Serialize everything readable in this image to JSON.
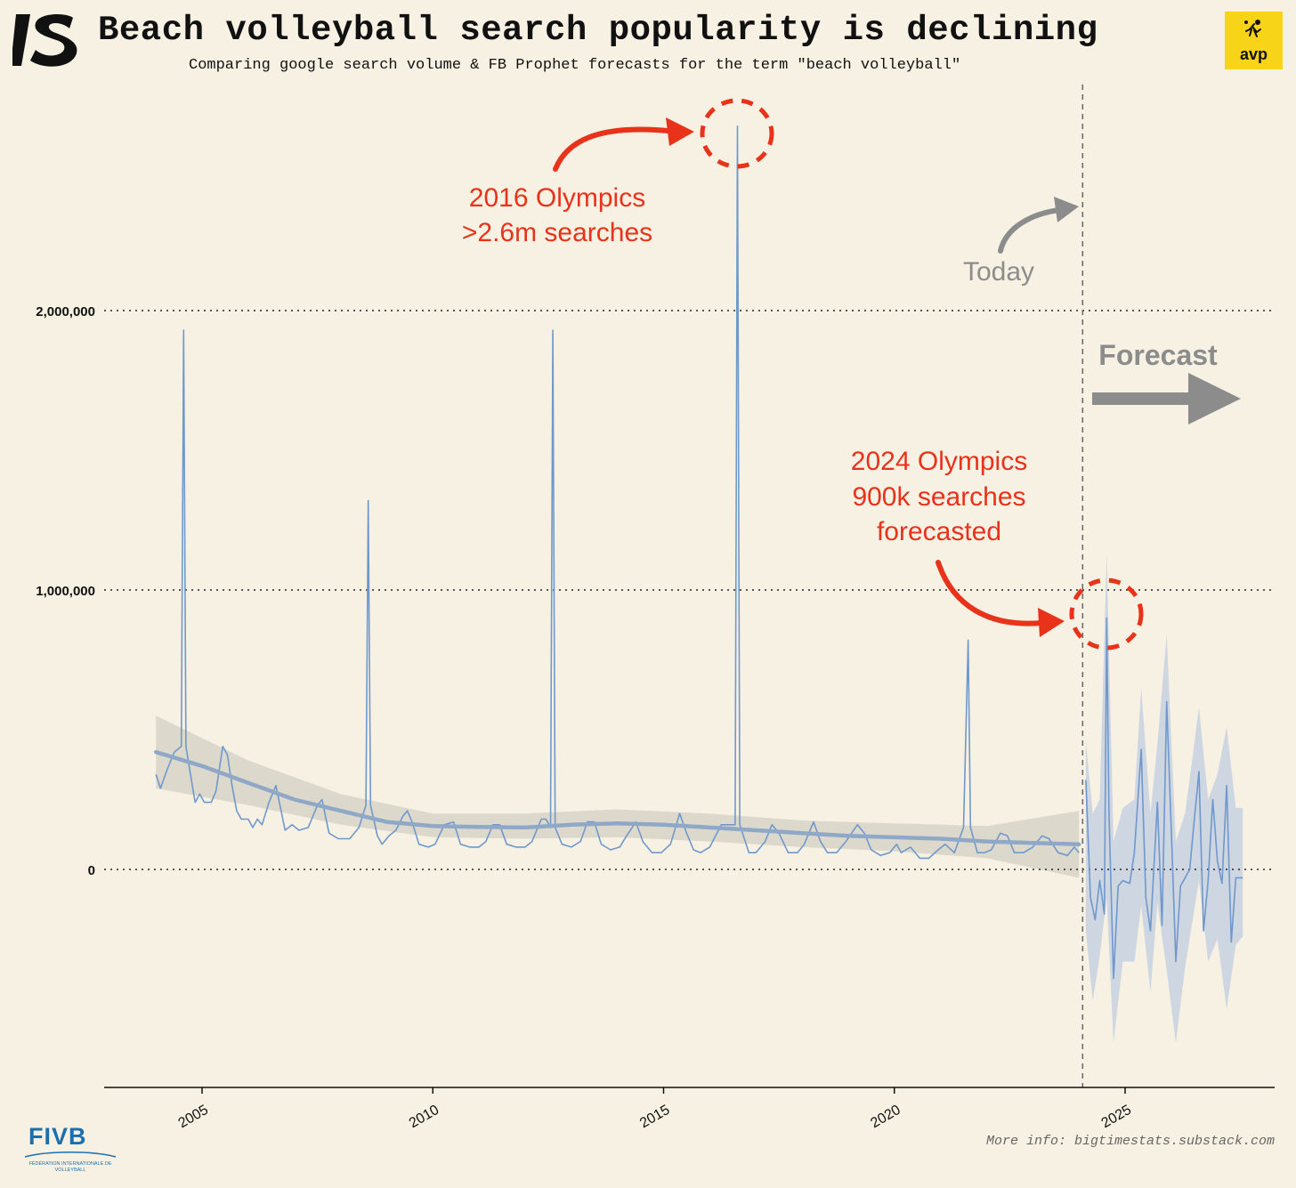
{
  "header": {
    "title": "Beach volleyball search popularity is declining",
    "subtitle": "Comparing google search volume & FB Prophet forecasts for the term \"beach volleyball\"",
    "brand_logo_icon": "bigtimestats-s-logo-icon",
    "avp_logo": "avp",
    "avp_icon": "volleyball-player-icon"
  },
  "footer": {
    "fivb_logo": "FIVB",
    "fivb_subtext": "FÉDÉRATION INTERNATIONALE DE VOLLEYBALL",
    "more_info": "More info: bigtimestats.substack.com"
  },
  "annotations": {
    "olympics_2016_line1": "2016 Olympics",
    "olympics_2016_line2": ">2.6m searches",
    "today": "Today",
    "forecast": "Forecast",
    "olympics_2024_line1": "2024 Olympics",
    "olympics_2024_line2": "900k searches",
    "olympics_2024_line3": "forecasted"
  },
  "colors": {
    "background": "#f7f1e3",
    "series_line": "#6f98cc",
    "trend_line": "#8fa8c8",
    "confidence_band": "#dcd9cc",
    "forecast_band": "#c9d3e0",
    "annotation_red": "#e8321a",
    "annotation_gray": "#8c8c8c",
    "avp_yellow": "#f7d417",
    "fivb_blue": "#1b6fb0"
  },
  "chart_data": {
    "type": "line",
    "title": "Beach volleyball search popularity is declining",
    "xlabel": "",
    "ylabel": "",
    "xlim": [
      2002.8,
      2028.3
    ],
    "ylim": [
      -780000,
      2750000
    ],
    "x_ticks": [
      2005,
      2010,
      2015,
      2020,
      2025
    ],
    "y_ticks": [
      0,
      1000000,
      2000000
    ],
    "y_tick_labels": [
      "0",
      "1,000,000",
      "2,000,000"
    ],
    "grid": "horizontal dotted at y ticks",
    "today_x": 2024.08,
    "series": [
      {
        "role": "historical",
        "points": [
          [
            2004.0,
            340000
          ],
          [
            2004.1,
            290000
          ],
          [
            2004.25,
            360000
          ],
          [
            2004.4,
            420000
          ],
          [
            2004.55,
            440000
          ],
          [
            2004.6,
            1930000
          ],
          [
            2004.65,
            440000
          ],
          [
            2004.75,
            340000
          ],
          [
            2004.85,
            240000
          ],
          [
            2004.95,
            270000
          ],
          [
            2005.05,
            240000
          ],
          [
            2005.2,
            240000
          ],
          [
            2005.3,
            280000
          ],
          [
            2005.45,
            440000
          ],
          [
            2005.55,
            410000
          ],
          [
            2005.65,
            300000
          ],
          [
            2005.75,
            210000
          ],
          [
            2005.85,
            180000
          ],
          [
            2006.0,
            180000
          ],
          [
            2006.1,
            150000
          ],
          [
            2006.2,
            180000
          ],
          [
            2006.3,
            160000
          ],
          [
            2006.45,
            240000
          ],
          [
            2006.6,
            300000
          ],
          [
            2006.8,
            140000
          ],
          [
            2006.95,
            160000
          ],
          [
            2007.1,
            140000
          ],
          [
            2007.3,
            150000
          ],
          [
            2007.5,
            230000
          ],
          [
            2007.6,
            250000
          ],
          [
            2007.75,
            130000
          ],
          [
            2007.95,
            110000
          ],
          [
            2008.2,
            110000
          ],
          [
            2008.4,
            150000
          ],
          [
            2008.55,
            230000
          ],
          [
            2008.6,
            1320000
          ],
          [
            2008.65,
            230000
          ],
          [
            2008.8,
            120000
          ],
          [
            2008.9,
            90000
          ],
          [
            2009.05,
            120000
          ],
          [
            2009.2,
            140000
          ],
          [
            2009.35,
            190000
          ],
          [
            2009.45,
            210000
          ],
          [
            2009.55,
            170000
          ],
          [
            2009.7,
            90000
          ],
          [
            2009.9,
            80000
          ],
          [
            2010.05,
            90000
          ],
          [
            2010.25,
            160000
          ],
          [
            2010.45,
            170000
          ],
          [
            2010.6,
            90000
          ],
          [
            2010.8,
            80000
          ],
          [
            2011.0,
            80000
          ],
          [
            2011.15,
            100000
          ],
          [
            2011.3,
            160000
          ],
          [
            2011.45,
            160000
          ],
          [
            2011.6,
            90000
          ],
          [
            2011.8,
            80000
          ],
          [
            2012.0,
            80000
          ],
          [
            2012.15,
            100000
          ],
          [
            2012.35,
            180000
          ],
          [
            2012.45,
            180000
          ],
          [
            2012.55,
            150000
          ],
          [
            2012.6,
            1930000
          ],
          [
            2012.65,
            150000
          ],
          [
            2012.8,
            90000
          ],
          [
            2013.0,
            80000
          ],
          [
            2013.2,
            100000
          ],
          [
            2013.35,
            170000
          ],
          [
            2013.5,
            170000
          ],
          [
            2013.65,
            90000
          ],
          [
            2013.85,
            70000
          ],
          [
            2014.05,
            80000
          ],
          [
            2014.2,
            120000
          ],
          [
            2014.4,
            170000
          ],
          [
            2014.55,
            100000
          ],
          [
            2014.75,
            60000
          ],
          [
            2014.95,
            60000
          ],
          [
            2015.15,
            90000
          ],
          [
            2015.35,
            200000
          ],
          [
            2015.5,
            130000
          ],
          [
            2015.65,
            70000
          ],
          [
            2015.8,
            60000
          ],
          [
            2016.0,
            80000
          ],
          [
            2016.25,
            160000
          ],
          [
            2016.55,
            160000
          ],
          [
            2016.6,
            2660000
          ],
          [
            2016.65,
            160000
          ],
          [
            2016.85,
            60000
          ],
          [
            2017.0,
            60000
          ],
          [
            2017.2,
            100000
          ],
          [
            2017.35,
            160000
          ],
          [
            2017.5,
            130000
          ],
          [
            2017.7,
            60000
          ],
          [
            2017.9,
            60000
          ],
          [
            2018.05,
            90000
          ],
          [
            2018.25,
            170000
          ],
          [
            2018.4,
            100000
          ],
          [
            2018.55,
            60000
          ],
          [
            2018.75,
            60000
          ],
          [
            2018.95,
            100000
          ],
          [
            2019.2,
            160000
          ],
          [
            2019.35,
            130000
          ],
          [
            2019.5,
            70000
          ],
          [
            2019.7,
            50000
          ],
          [
            2019.9,
            60000
          ],
          [
            2020.05,
            90000
          ],
          [
            2020.15,
            60000
          ],
          [
            2020.35,
            80000
          ],
          [
            2020.55,
            40000
          ],
          [
            2020.75,
            40000
          ],
          [
            2020.95,
            70000
          ],
          [
            2021.1,
            90000
          ],
          [
            2021.3,
            60000
          ],
          [
            2021.5,
            150000
          ],
          [
            2021.6,
            820000
          ],
          [
            2021.65,
            150000
          ],
          [
            2021.8,
            60000
          ],
          [
            2021.95,
            60000
          ],
          [
            2022.1,
            70000
          ],
          [
            2022.3,
            130000
          ],
          [
            2022.45,
            120000
          ],
          [
            2022.6,
            60000
          ],
          [
            2022.8,
            60000
          ],
          [
            2023.0,
            80000
          ],
          [
            2023.2,
            120000
          ],
          [
            2023.35,
            110000
          ],
          [
            2023.55,
            60000
          ],
          [
            2023.75,
            50000
          ],
          [
            2023.9,
            80000
          ],
          [
            2024.0,
            60000
          ]
        ]
      },
      {
        "role": "trend",
        "points": [
          [
            2004.0,
            420000
          ],
          [
            2005.0,
            370000
          ],
          [
            2006.0,
            310000
          ],
          [
            2007.0,
            250000
          ],
          [
            2008.0,
            210000
          ],
          [
            2009.0,
            170000
          ],
          [
            2010.0,
            155000
          ],
          [
            2011.0,
            152000
          ],
          [
            2012.0,
            150000
          ],
          [
            2013.0,
            160000
          ],
          [
            2014.0,
            165000
          ],
          [
            2015.0,
            160000
          ],
          [
            2016.0,
            150000
          ],
          [
            2017.0,
            140000
          ],
          [
            2018.0,
            130000
          ],
          [
            2019.0,
            120000
          ],
          [
            2020.0,
            115000
          ],
          [
            2021.0,
            110000
          ],
          [
            2022.0,
            100000
          ],
          [
            2023.0,
            95000
          ],
          [
            2024.0,
            90000
          ]
        ]
      },
      {
        "role": "trend_band",
        "upper": [
          [
            2004.0,
            550000
          ],
          [
            2006.0,
            390000
          ],
          [
            2008.0,
            270000
          ],
          [
            2010.0,
            200000
          ],
          [
            2012.0,
            200000
          ],
          [
            2014.0,
            215000
          ],
          [
            2016.0,
            200000
          ],
          [
            2018.0,
            175000
          ],
          [
            2020.0,
            165000
          ],
          [
            2022.0,
            155000
          ],
          [
            2024.0,
            210000
          ]
        ],
        "lower": [
          [
            2004.0,
            290000
          ],
          [
            2006.0,
            230000
          ],
          [
            2008.0,
            160000
          ],
          [
            2010.0,
            115000
          ],
          [
            2012.0,
            110000
          ],
          [
            2014.0,
            115000
          ],
          [
            2016.0,
            100000
          ],
          [
            2018.0,
            80000
          ],
          [
            2020.0,
            65000
          ],
          [
            2022.0,
            40000
          ],
          [
            2024.0,
            -30000
          ]
        ]
      },
      {
        "role": "forecast",
        "points": [
          [
            2024.15,
            320000
          ],
          [
            2024.25,
            -100000
          ],
          [
            2024.35,
            -180000
          ],
          [
            2024.45,
            -40000
          ],
          [
            2024.55,
            -160000
          ],
          [
            2024.6,
            900000
          ],
          [
            2024.65,
            200000
          ],
          [
            2024.75,
            -390000
          ],
          [
            2024.85,
            -60000
          ],
          [
            2024.95,
            -40000
          ],
          [
            2025.1,
            -50000
          ],
          [
            2025.2,
            60000
          ],
          [
            2025.35,
            430000
          ],
          [
            2025.45,
            -100000
          ],
          [
            2025.55,
            -220000
          ],
          [
            2025.7,
            240000
          ],
          [
            2025.8,
            -200000
          ],
          [
            2025.9,
            600000
          ],
          [
            2026.0,
            150000
          ],
          [
            2026.1,
            -330000
          ],
          [
            2026.2,
            -60000
          ],
          [
            2026.3,
            -30000
          ],
          [
            2026.4,
            0
          ],
          [
            2026.5,
            180000
          ],
          [
            2026.6,
            350000
          ],
          [
            2026.7,
            -220000
          ],
          [
            2026.8,
            -40000
          ],
          [
            2026.9,
            250000
          ],
          [
            2027.0,
            30000
          ],
          [
            2027.1,
            -50000
          ],
          [
            2027.2,
            300000
          ],
          [
            2027.3,
            -260000
          ],
          [
            2027.4,
            -30000
          ],
          [
            2027.55,
            -30000
          ]
        ]
      },
      {
        "role": "forecast_band",
        "upper": [
          [
            2024.15,
            460000
          ],
          [
            2024.3,
            200000
          ],
          [
            2024.45,
            250000
          ],
          [
            2024.6,
            1130000
          ],
          [
            2024.75,
            100000
          ],
          [
            2024.95,
            220000
          ],
          [
            2025.2,
            250000
          ],
          [
            2025.35,
            650000
          ],
          [
            2025.55,
            200000
          ],
          [
            2025.7,
            450000
          ],
          [
            2025.9,
            840000
          ],
          [
            2026.1,
            100000
          ],
          [
            2026.3,
            200000
          ],
          [
            2026.6,
            580000
          ],
          [
            2026.8,
            250000
          ],
          [
            2027.0,
            340000
          ],
          [
            2027.2,
            510000
          ],
          [
            2027.4,
            220000
          ],
          [
            2027.55,
            220000
          ]
        ],
        "lower": [
          [
            2024.15,
            -220000
          ],
          [
            2024.3,
            -470000
          ],
          [
            2024.45,
            -310000
          ],
          [
            2024.6,
            -100000
          ],
          [
            2024.75,
            -620000
          ],
          [
            2024.95,
            -330000
          ],
          [
            2025.2,
            -330000
          ],
          [
            2025.35,
            -130000
          ],
          [
            2025.55,
            -440000
          ],
          [
            2025.7,
            -120000
          ],
          [
            2025.9,
            -360000
          ],
          [
            2026.1,
            -620000
          ],
          [
            2026.3,
            -350000
          ],
          [
            2026.6,
            -40000
          ],
          [
            2026.8,
            -330000
          ],
          [
            2027.0,
            -250000
          ],
          [
            2027.2,
            -500000
          ],
          [
            2027.4,
            -270000
          ],
          [
            2027.55,
            -240000
          ]
        ]
      }
    ]
  }
}
